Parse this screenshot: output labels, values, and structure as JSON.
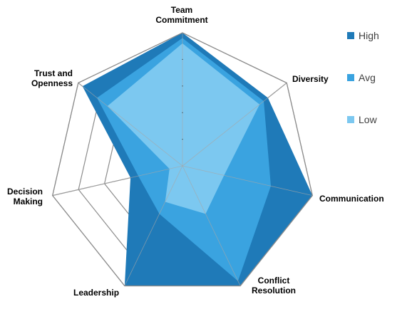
{
  "chart_data": {
    "type": "radar",
    "title": "",
    "axes": [
      "Team Commitment",
      "Diversity",
      "Communication",
      "Conflict Resolution",
      "Leadership",
      "Decision Making",
      "Trust and Openness"
    ],
    "axis_label_lines": [
      [
        "Team",
        "Commitment"
      ],
      [
        "Diversity"
      ],
      [
        "Communication"
      ],
      [
        "Conflict",
        "Resolution"
      ],
      [
        "Leadership"
      ],
      [
        "Decision",
        "Making"
      ],
      [
        "Trust and",
        "Openness"
      ]
    ],
    "range": [
      0,
      5
    ],
    "gridlines": true,
    "legend_position": "right",
    "series": [
      {
        "name": "High",
        "color": "#1f7ab8",
        "values": [
          5.0,
          4.1,
          5.0,
          5.0,
          5.0,
          2.0,
          4.8
        ]
      },
      {
        "name": "Avg",
        "color": "#3aa3e0",
        "values": [
          4.8,
          3.9,
          3.4,
          4.8,
          2.0,
          1.7,
          4.1
        ]
      },
      {
        "name": "Low",
        "color": "#7cc8f0",
        "values": [
          4.6,
          3.7,
          1.6,
          2.0,
          1.5,
          0.5,
          3.6
        ]
      }
    ]
  }
}
